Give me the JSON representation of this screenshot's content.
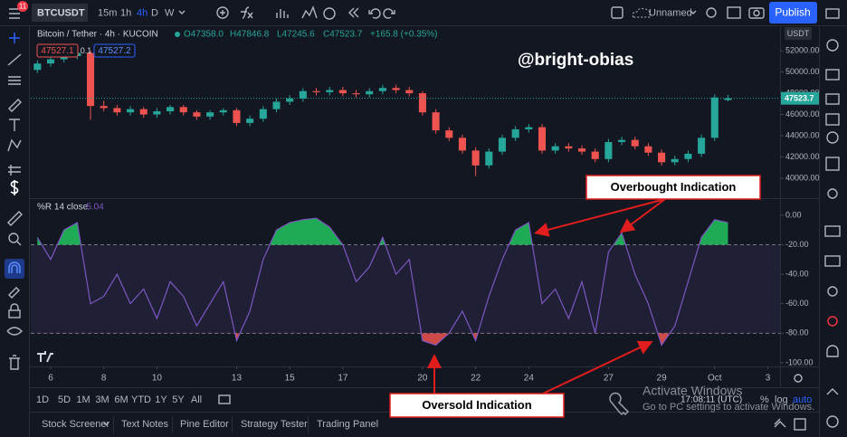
{
  "toolbar": {
    "badge": "11",
    "symbol": "BTCUSDT",
    "intervals": [
      "15m",
      "1h",
      "4h",
      "D",
      "W"
    ],
    "layout_name": "Unnamed",
    "publish": "Publish"
  },
  "chart_data": [
    {
      "type": "candlestick",
      "legend": {
        "title": "Bitcoin / Tether · 4h · KUCOIN",
        "open": "O47358.0",
        "high": "H47846.8",
        "low": "L47245.6",
        "close": "C47523.7",
        "change": "+165.8 (+0.35%)"
      },
      "sell": "47527.1",
      "spread": "0.1",
      "buy": "47527.2",
      "currency": "USDT",
      "annotation": "@bright-obias",
      "x": [
        5.5,
        6,
        6.5,
        7,
        7.5,
        8,
        8.5,
        9,
        9.5,
        10,
        10.5,
        11,
        11.5,
        12,
        12.5,
        13,
        13.5,
        14,
        14.5,
        15,
        15.5,
        16,
        16.5,
        17,
        17.5,
        18,
        18.5,
        19,
        19.5,
        20,
        20.5,
        21,
        21.5,
        22,
        22.5,
        23,
        23.5,
        24,
        24.5,
        25,
        25.5,
        26,
        26.5,
        27,
        27.5,
        28,
        28.5,
        29,
        29.5,
        30,
        30.5,
        31,
        31.5
      ],
      "open": [
        50200,
        50800,
        51200,
        51500,
        51800,
        46800,
        46600,
        46200,
        46500,
        46000,
        46300,
        46700,
        46200,
        45800,
        46200,
        46400,
        45200,
        45600,
        46500,
        47200,
        47500,
        48200,
        48100,
        48300,
        48000,
        47900,
        48200,
        48500,
        48300,
        48000,
        46200,
        44500,
        43800,
        42600,
        41200,
        42500,
        43800,
        44600,
        44800,
        42600,
        43000,
        42800,
        42500,
        41800,
        43400,
        43600,
        43000,
        42400,
        41500,
        41800,
        42300,
        43800,
        47358.0
      ],
      "high": [
        51100,
        51500,
        51800,
        52100,
        52000,
        47300,
        46900,
        46800,
        46700,
        46600,
        46900,
        46900,
        46400,
        46400,
        46600,
        46600,
        45900,
        46800,
        47500,
        47800,
        48500,
        48500,
        48600,
        48600,
        48300,
        48500,
        48800,
        48800,
        48600,
        48200,
        46500,
        44800,
        44100,
        42900,
        42800,
        44100,
        44900,
        45100,
        45100,
        43300,
        43300,
        43100,
        42800,
        43700,
        43900,
        43900,
        43300,
        42700,
        42100,
        42600,
        44100,
        47900,
        47846.8
      ],
      "low": [
        49900,
        50500,
        50900,
        51200,
        45500,
        46300,
        45900,
        45900,
        45700,
        45700,
        46000,
        45900,
        45500,
        45500,
        45900,
        44900,
        44900,
        45300,
        46200,
        46900,
        47200,
        47800,
        47800,
        47700,
        47600,
        47600,
        47900,
        48000,
        47700,
        45900,
        44200,
        43500,
        42300,
        40200,
        40900,
        42200,
        43500,
        44300,
        42300,
        42300,
        42500,
        42200,
        41500,
        41500,
        43100,
        42700,
        42100,
        41200,
        41200,
        41500,
        42000,
        43500,
        47245.6
      ],
      "close": [
        50800,
        51200,
        51500,
        51800,
        46800,
        46600,
        46200,
        46500,
        46000,
        46300,
        46700,
        46200,
        45800,
        46200,
        46400,
        45200,
        45600,
        46500,
        47200,
        47500,
        48200,
        48100,
        48300,
        48000,
        47900,
        48200,
        48500,
        48300,
        48000,
        46200,
        44500,
        43800,
        42600,
        41200,
        42500,
        43800,
        44600,
        44800,
        42600,
        43000,
        42800,
        42500,
        41800,
        43400,
        43600,
        43000,
        42400,
        41500,
        41800,
        42300,
        43800,
        47600,
        47523.7
      ],
      "up_color": "#26a69a",
      "down_color": "#ef5350",
      "last_price": 47523.7,
      "xlim": [
        5.25,
        33.46
      ],
      "ylim": [
        38200,
        54400
      ],
      "yticks": [
        {
          "value": 52000,
          "label": "52000.00"
        },
        {
          "value": 50000,
          "label": "50000.00"
        },
        {
          "value": 48000,
          "label": "48000.00"
        },
        {
          "value": 46000,
          "label": "46000.00"
        },
        {
          "value": 44000,
          "label": "44000.00"
        },
        {
          "value": 42000,
          "label": "42000.00"
        },
        {
          "value": 40000,
          "label": "40000.00"
        }
      ]
    },
    {
      "type": "line",
      "title": "%R 14 close",
      "color": "#7e57c2",
      "values": [
        -15,
        -30,
        -10,
        -5,
        -60,
        -55,
        -40,
        -60,
        -50,
        -70,
        -45,
        -55,
        -75,
        -60,
        -45,
        -85,
        -65,
        -30,
        -10,
        -5,
        -3,
        -2,
        -8,
        -20,
        -45,
        -35,
        -15,
        -40,
        -30,
        -85,
        -88,
        -80,
        -65,
        -85,
        -55,
        -30,
        -10,
        -5,
        -60,
        -50,
        -70,
        -45,
        -80,
        -25,
        -12,
        -40,
        -60,
        -88,
        -75,
        -45,
        -15,
        -3,
        -5.04
      ],
      "overbought": -20,
      "oversold": -80,
      "overbought_color": "#22c55e",
      "oversold_color": "#ef5350",
      "annotations": [
        "Overbought Indication",
        "Oversold Indication"
      ],
      "xlim": [
        5.25,
        33.46
      ],
      "ylim": [
        -102.5,
        11
      ],
      "xticks": [
        6,
        8,
        10,
        13,
        15,
        17,
        20,
        22,
        24,
        27,
        29,
        {
          "value": 31,
          "label": "Oct"
        },
        {
          "value": 33,
          "label": "3"
        }
      ],
      "yticks": [
        {
          "value": 0,
          "label": "0.00"
        },
        {
          "value": -20,
          "label": "-20.00"
        },
        {
          "value": -40,
          "label": "-40.00"
        },
        {
          "value": -60,
          "label": "-60.00"
        },
        {
          "value": -80,
          "label": "-80.00"
        },
        {
          "value": -100,
          "label": "-100.00"
        }
      ]
    }
  ],
  "ranges": [
    "1D",
    "5D",
    "1M",
    "3M",
    "6M",
    "YTD",
    "1Y",
    "5Y",
    "All"
  ],
  "status": {
    "time": "17:08:11 (UTC)",
    "percent": "%",
    "log": "log",
    "auto": "auto"
  },
  "watermark": {
    "title": "Activate Windows",
    "text": "Go to PC settings to activate Windows."
  },
  "tabs": [
    "Stock Screener",
    "Text Notes",
    "Pine Editor",
    "Strategy Tester",
    "Trading Panel"
  ]
}
